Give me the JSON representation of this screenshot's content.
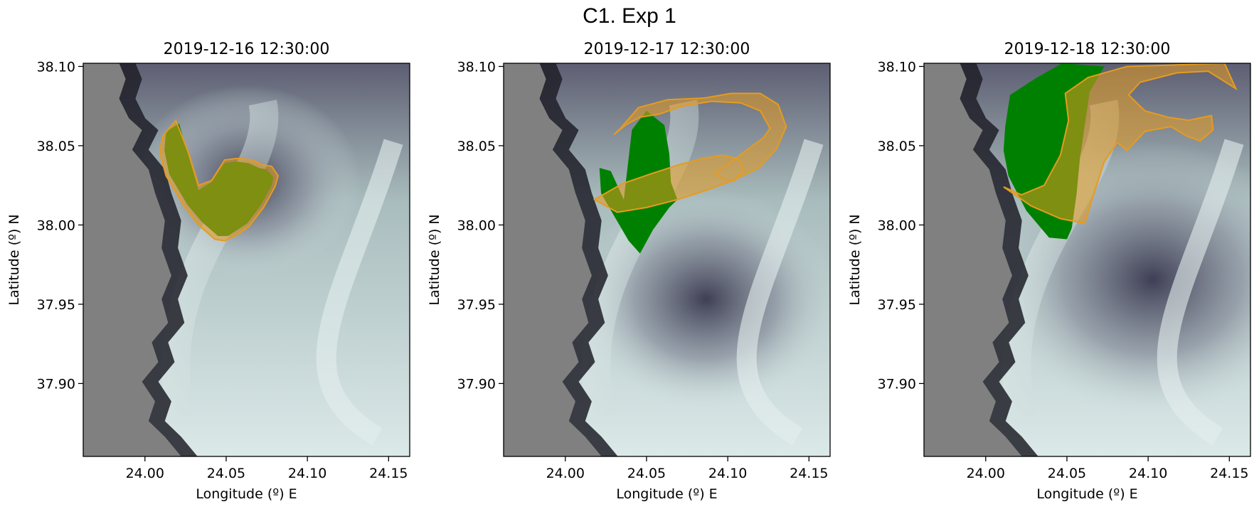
{
  "figure": {
    "title": "C1. Exp 1"
  },
  "chart_data": [
    {
      "type": "map",
      "title": "2019-12-16 12:30:00",
      "xlabel": "Longitude (º) E",
      "ylabel": "Latitude (º) N",
      "xlim": [
        23.962,
        24.163
      ],
      "ylim": [
        37.854,
        38.102
      ],
      "xticks": [
        "24.00",
        "24.05",
        "24.10",
        "24.15"
      ],
      "yticks": [
        "38.10",
        "38.05",
        "38.00",
        "37.95",
        "37.90"
      ],
      "release_polygon": [
        [
          24.013,
          38.059
        ],
        [
          24.021,
          38.064
        ],
        [
          24.027,
          38.043
        ],
        [
          24.033,
          38.022
        ],
        [
          24.041,
          38.027
        ],
        [
          24.049,
          38.039
        ],
        [
          24.056,
          38.04
        ],
        [
          24.064,
          38.039
        ],
        [
          24.07,
          38.036
        ],
        [
          24.075,
          38.035
        ],
        [
          24.079,
          38.03
        ],
        [
          24.078,
          38.025
        ],
        [
          24.071,
          38.012
        ],
        [
          24.063,
          38.001
        ],
        [
          24.057,
          37.997
        ],
        [
          24.051,
          37.993
        ],
        [
          24.045,
          37.993
        ],
        [
          24.035,
          38.002
        ],
        [
          24.026,
          38.013
        ],
        [
          24.015,
          38.032
        ],
        [
          24.012,
          38.047
        ]
      ],
      "tracer_polygons": [
        [
          [
            24.011,
            38.056
          ],
          [
            24.019,
            38.066
          ],
          [
            24.027,
            38.045
          ],
          [
            24.033,
            38.025
          ],
          [
            24.041,
            38.028
          ],
          [
            24.049,
            38.041
          ],
          [
            24.057,
            38.042
          ],
          [
            24.066,
            38.041
          ],
          [
            24.072,
            38.038
          ],
          [
            24.078,
            38.037
          ],
          [
            24.082,
            38.031
          ],
          [
            24.08,
            38.024
          ],
          [
            24.073,
            38.011
          ],
          [
            24.064,
            37.999
          ],
          [
            24.057,
            37.994
          ],
          [
            24.049,
            37.99
          ],
          [
            24.043,
            37.991
          ],
          [
            24.033,
            38.0
          ],
          [
            24.024,
            38.012
          ],
          [
            24.013,
            38.031
          ],
          [
            24.009,
            38.046
          ]
        ]
      ],
      "colors": {
        "land": "#808080",
        "release": "#008000",
        "tracer": "#e69b1f"
      }
    },
    {
      "type": "map",
      "title": "2019-12-17 12:30:00",
      "xlabel": "Longitude (º) E",
      "ylabel": "Latitude (º) N",
      "xlim": [
        23.962,
        24.163
      ],
      "ylim": [
        37.854,
        38.102
      ],
      "xticks": [
        "24.00",
        "24.05",
        "24.10",
        "24.15"
      ],
      "yticks": [
        "38.10",
        "38.05",
        "38.00",
        "37.95",
        "37.90"
      ],
      "release_polygon": [
        [
          24.021,
          38.036
        ],
        [
          24.028,
          38.034
        ],
        [
          24.036,
          38.016
        ],
        [
          24.041,
          38.06
        ],
        [
          24.05,
          38.072
        ],
        [
          24.061,
          38.063
        ],
        [
          24.064,
          38.045
        ],
        [
          24.065,
          38.027
        ],
        [
          24.069,
          38.016
        ],
        [
          24.064,
          38.011
        ],
        [
          24.054,
          37.997
        ],
        [
          24.046,
          37.982
        ],
        [
          24.039,
          37.99
        ],
        [
          24.031,
          38.004
        ],
        [
          24.022,
          38.02
        ]
      ],
      "tracer_polygons": [
        [
          [
            24.018,
            38.016
          ],
          [
            24.035,
            38.026
          ],
          [
            24.052,
            38.032
          ],
          [
            24.07,
            38.038
          ],
          [
            24.085,
            38.042
          ],
          [
            24.097,
            38.044
          ],
          [
            24.106,
            38.042
          ],
          [
            24.11,
            38.035
          ],
          [
            24.104,
            38.028
          ],
          [
            24.097,
            38.029
          ],
          [
            24.092,
            38.033
          ],
          [
            24.1,
            38.038
          ],
          [
            24.11,
            38.046
          ],
          [
            24.122,
            38.055
          ],
          [
            24.126,
            38.061
          ],
          [
            24.12,
            38.072
          ],
          [
            24.108,
            38.077
          ],
          [
            24.09,
            38.078
          ],
          [
            24.072,
            38.075
          ],
          [
            24.058,
            38.07
          ],
          [
            24.046,
            38.068
          ],
          [
            24.037,
            38.063
          ],
          [
            24.03,
            38.057
          ],
          [
            24.034,
            38.061
          ],
          [
            24.045,
            38.074
          ],
          [
            24.063,
            38.079
          ],
          [
            24.085,
            38.08
          ],
          [
            24.102,
            38.083
          ],
          [
            24.12,
            38.083
          ],
          [
            24.131,
            38.076
          ],
          [
            24.136,
            38.062
          ],
          [
            24.13,
            38.048
          ],
          [
            24.119,
            38.036
          ],
          [
            24.103,
            38.028
          ],
          [
            24.087,
            38.022
          ],
          [
            24.069,
            38.016
          ],
          [
            24.05,
            38.011
          ],
          [
            24.032,
            38.008
          ]
        ]
      ],
      "colors": {
        "land": "#808080",
        "release": "#008000",
        "tracer": "#e69b1f"
      }
    },
    {
      "type": "map",
      "title": "2019-12-18 12:30:00",
      "xlabel": "Longitude (º) E",
      "ylabel": "Latitude (º) N",
      "xlim": [
        23.962,
        24.163
      ],
      "ylim": [
        37.854,
        38.102
      ],
      "xticks": [
        "24.00",
        "24.05",
        "24.10",
        "24.15"
      ],
      "yticks": [
        "38.10",
        "38.05",
        "38.00",
        "37.95",
        "37.90"
      ],
      "release_polygon": [
        [
          24.012,
          38.062
        ],
        [
          24.015,
          38.082
        ],
        [
          24.03,
          38.092
        ],
        [
          24.047,
          38.102
        ],
        [
          24.073,
          38.1
        ],
        [
          24.064,
          38.084
        ],
        [
          24.061,
          38.063
        ],
        [
          24.058,
          38.042
        ],
        [
          24.056,
          38.02
        ],
        [
          24.053,
          37.998
        ],
        [
          24.05,
          37.991
        ],
        [
          24.039,
          37.992
        ],
        [
          24.025,
          38.009
        ],
        [
          24.014,
          38.031
        ],
        [
          24.011,
          38.047
        ]
      ],
      "tracer_polygons": [
        [
          [
            24.011,
            38.024
          ],
          [
            24.028,
            38.012
          ],
          [
            24.046,
            38.004
          ],
          [
            24.061,
            38.001
          ],
          [
            24.066,
            38.018
          ],
          [
            24.073,
            38.04
          ],
          [
            24.081,
            38.052
          ],
          [
            24.087,
            38.047
          ],
          [
            24.098,
            38.059
          ],
          [
            24.114,
            38.062
          ],
          [
            24.124,
            38.056
          ],
          [
            24.132,
            38.053
          ],
          [
            24.14,
            38.06
          ],
          [
            24.139,
            38.069
          ],
          [
            24.125,
            38.066
          ],
          [
            24.112,
            38.068
          ],
          [
            24.098,
            38.072
          ],
          [
            24.088,
            38.082
          ],
          [
            24.095,
            38.09
          ],
          [
            24.118,
            38.096
          ],
          [
            24.137,
            38.097
          ],
          [
            24.154,
            38.086
          ],
          [
            24.147,
            38.102
          ],
          [
            24.118,
            38.101
          ],
          [
            24.087,
            38.1
          ],
          [
            24.063,
            38.093
          ],
          [
            24.049,
            38.083
          ],
          [
            24.051,
            38.066
          ],
          [
            24.046,
            38.044
          ],
          [
            24.036,
            38.025
          ],
          [
            24.022,
            38.019
          ]
        ]
      ],
      "colors": {
        "land": "#808080",
        "release": "#008000",
        "tracer": "#e69b1f"
      }
    }
  ]
}
